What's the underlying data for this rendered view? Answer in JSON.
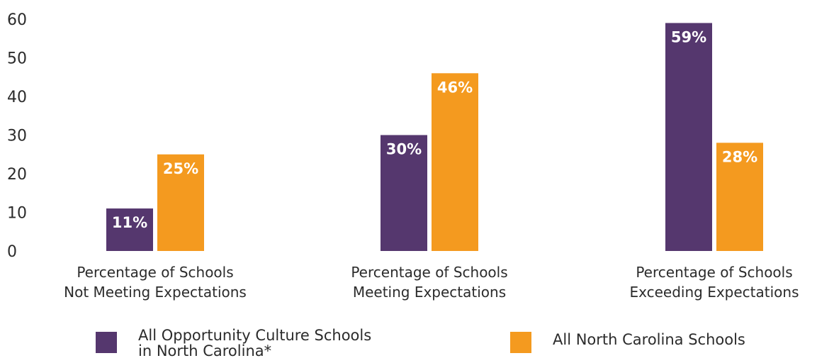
{
  "chart_data": {
    "type": "bar",
    "categories": [
      [
        "Percentage of Schools",
        "Not Meeting Expectations"
      ],
      [
        "Percentage of Schools",
        "Meeting Expectations"
      ],
      [
        "Percentage of Schools",
        "Exceeding Expectations"
      ]
    ],
    "series": [
      {
        "name": "All Opportunity Culture Schools\nin North Carolina*",
        "values": [
          11,
          30,
          59
        ],
        "labels": [
          "11%",
          "30%",
          "59%"
        ],
        "color": "#55376e"
      },
      {
        "name": "All North Carolina Schools",
        "values": [
          25,
          46,
          28
        ],
        "labels": [
          "25%",
          "46%",
          "28%"
        ],
        "color": "#f49a1f"
      }
    ],
    "ylim": [
      0,
      60
    ],
    "yticks": [
      "0",
      "10",
      "20",
      "30",
      "40",
      "50",
      "60"
    ],
    "grid": false,
    "legend_position": "bottom"
  }
}
